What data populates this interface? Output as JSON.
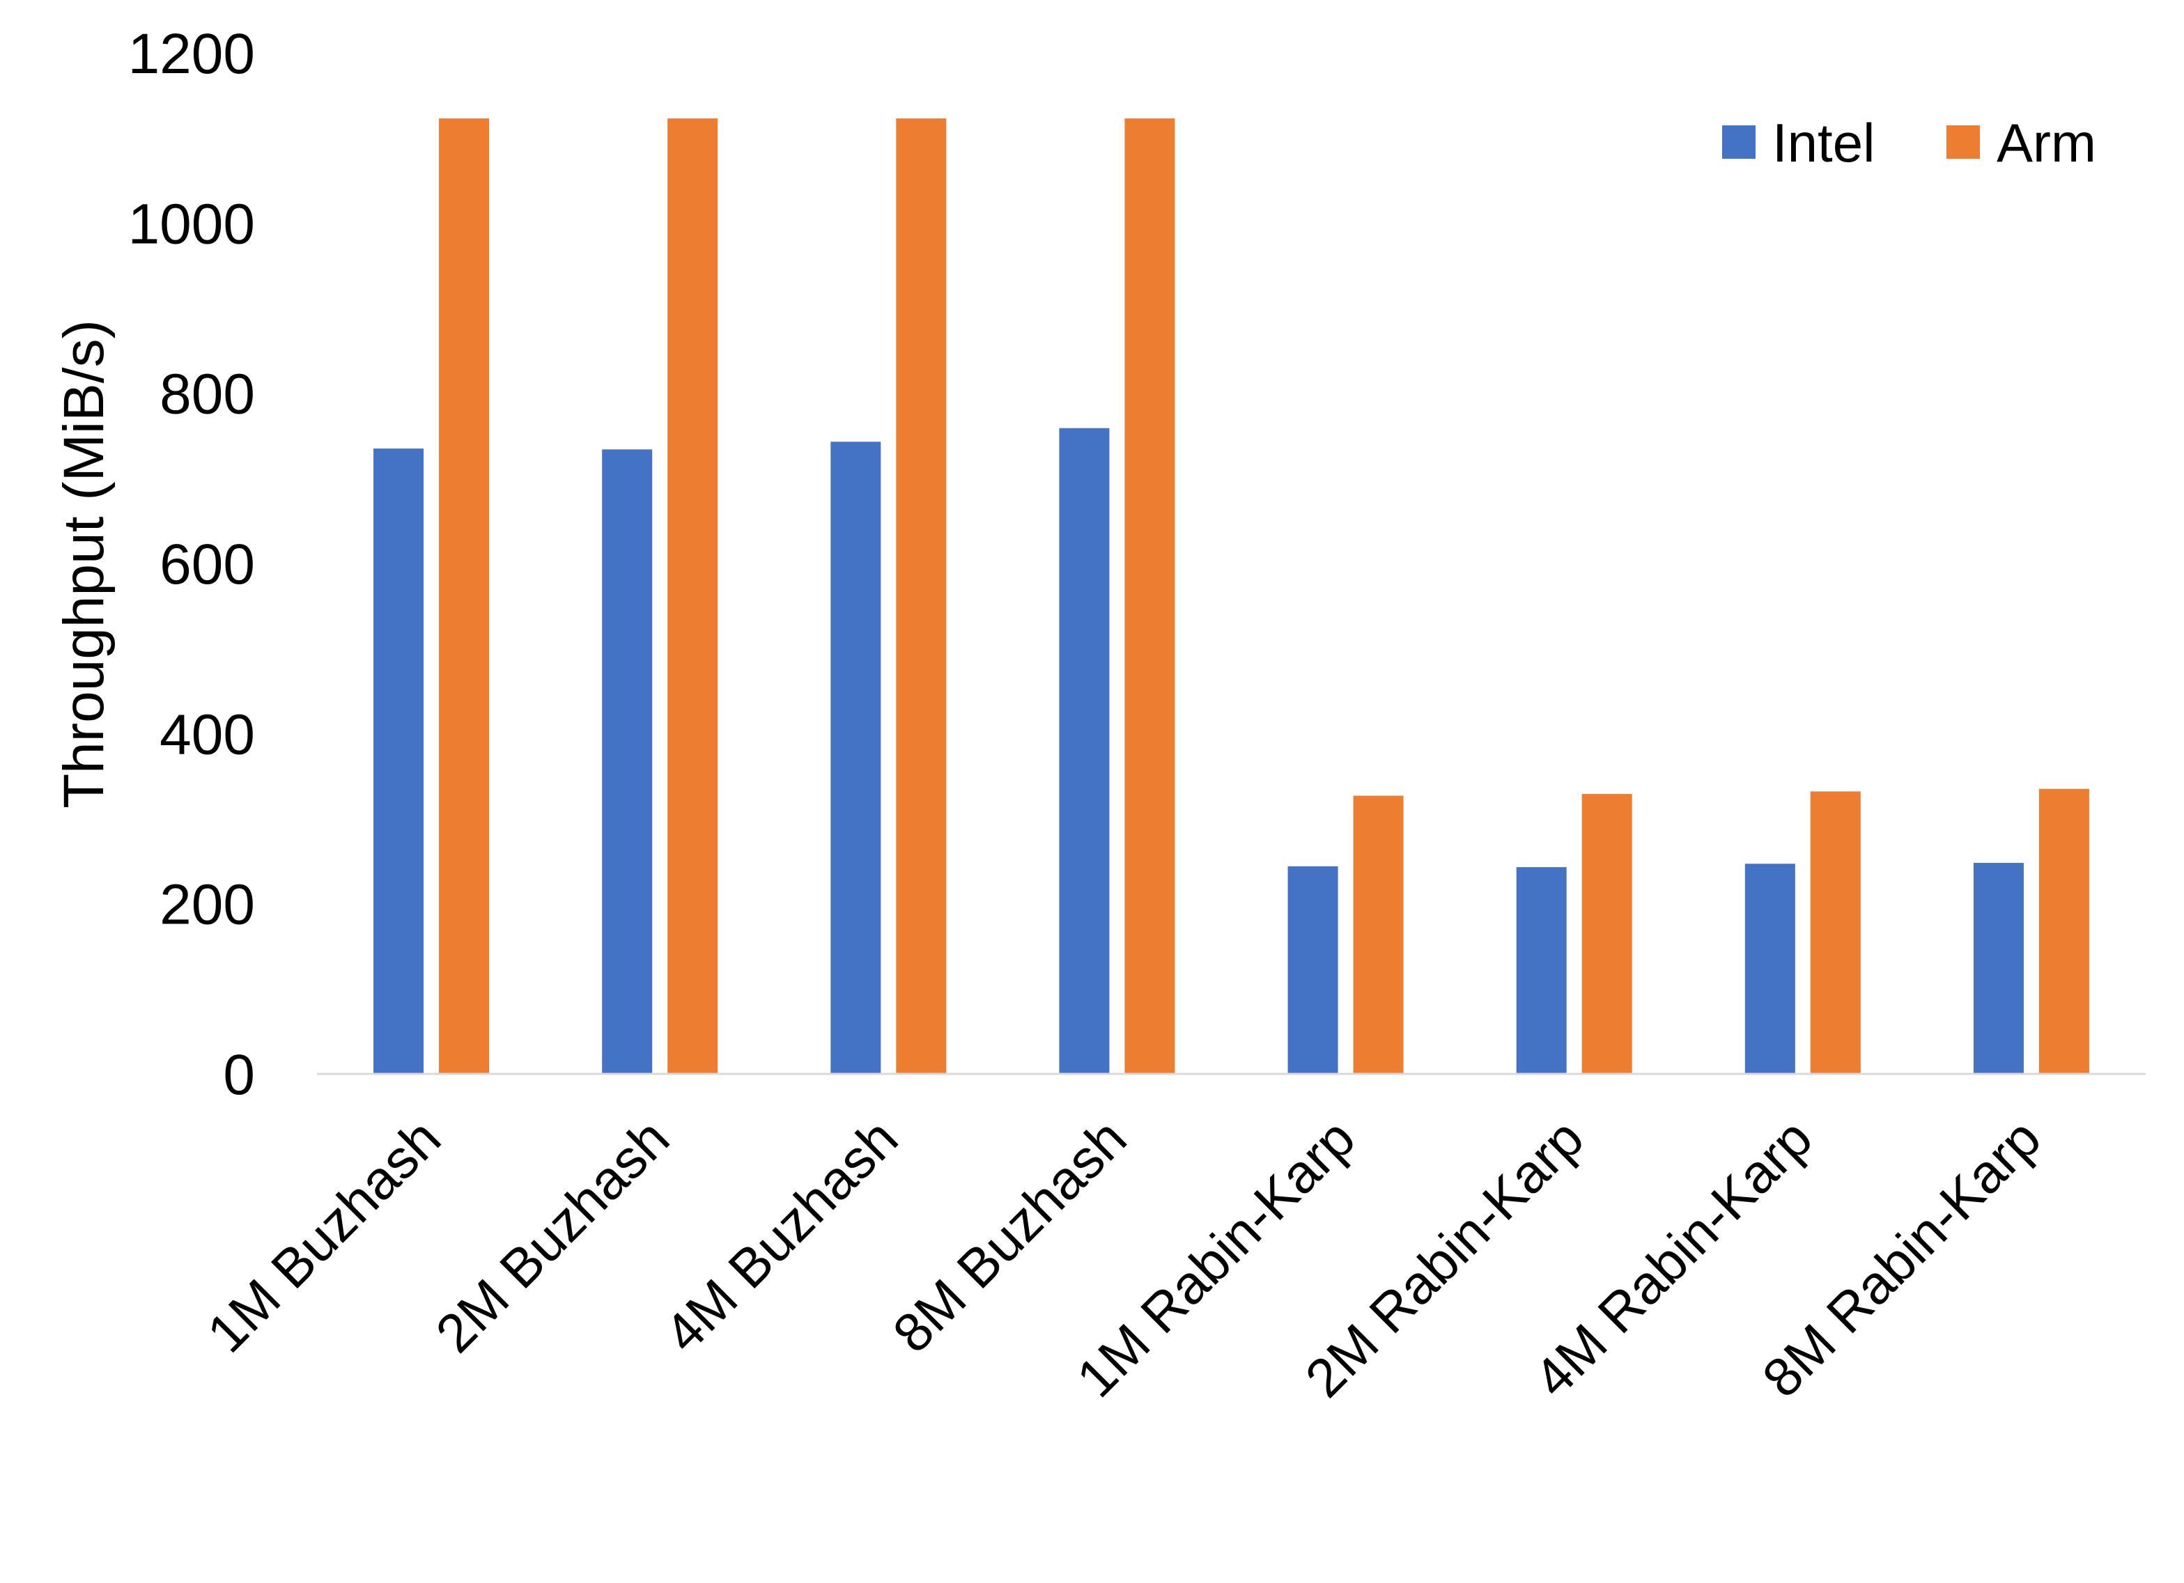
{
  "chart_data": {
    "type": "bar",
    "title": "",
    "xlabel": "",
    "ylabel": "Throughput (MiB/s)",
    "ylim": [
      0,
      1200
    ],
    "yticks": [
      0,
      200,
      400,
      600,
      800,
      1000,
      1200
    ],
    "grid": false,
    "legend_position": "top-right",
    "categories": [
      "1M Buzhash",
      "2M Buzhash",
      "4M Buzhash",
      "8M Buzhash",
      "1M Rabin-Karp",
      "2M Rabin-Karp",
      "4M Rabin-Karp",
      "8M Rabin-Karp"
    ],
    "series": [
      {
        "name": "Intel",
        "color": "#4472C4",
        "values": [
          735,
          734,
          743,
          759,
          244,
          243,
          247,
          248
        ]
      },
      {
        "name": "Arm",
        "color": "#ED7D31",
        "values": [
          1123,
          1123,
          1123,
          1123,
          327,
          329,
          332,
          335
        ]
      }
    ]
  }
}
